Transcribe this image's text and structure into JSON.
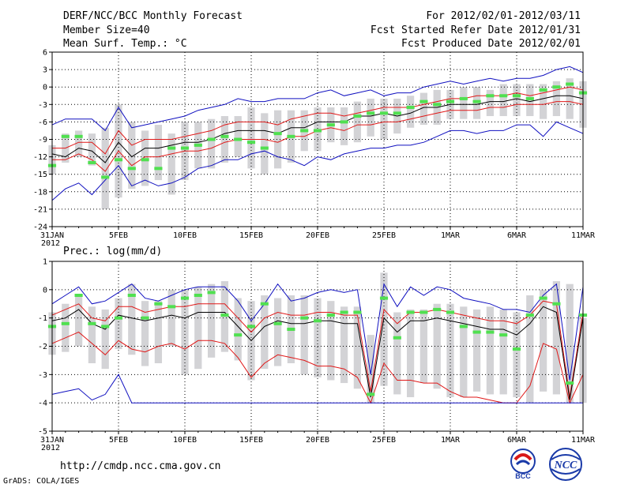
{
  "header": {
    "title": "DERF/NCC/BCC Monthly Forecast",
    "member_size": "Member Size=40",
    "variable": "Mean Surf. Temp.: °C",
    "forecast_period": "For 2012/02/01-2012/03/11",
    "refer_date": "Fcst Started Refer Date 2012/01/31",
    "produced_date": "Fcst Produced Date 2012/02/01"
  },
  "footer": {
    "url": "http://cmdp.ncc.cma.gov.cn",
    "grads": "GrADS: COLA/IGES",
    "logo_bcc": "BCC",
    "logo_ncc": "NCC"
  },
  "colors": {
    "box": "#d3d3d6",
    "obs": "#50e050",
    "mean": "#000000",
    "std": "#e01818",
    "range": "#1010c0",
    "grid": "#000000"
  },
  "chart_data": [
    {
      "type": "line",
      "title": "Mean Surf. Temp.: °C",
      "xlim": [
        0,
        40
      ],
      "ylim": [
        -24,
        6
      ],
      "yticks": [
        6,
        3,
        0,
        -3,
        -6,
        -9,
        -12,
        -15,
        -18,
        -21,
        -24
      ],
      "xtick_positions": [
        0,
        5,
        10,
        15,
        20,
        25,
        30,
        35,
        40
      ],
      "xtick_labels": [
        "31JAN",
        "5FEB",
        "10FEB",
        "15FEB",
        "20FEB",
        "25FEB",
        "1MAR",
        "6MAR",
        "11MAR"
      ],
      "xtick_year": "2012",
      "box_low": [
        -15,
        -13,
        -12,
        -13.5,
        -21,
        -19,
        -17.5,
        -17,
        -16,
        -18.5,
        -16,
        -14,
        -14,
        -13,
        -12,
        -14,
        -15,
        -14,
        -13,
        -11,
        -11,
        -9.5,
        -10,
        -9.5,
        -8.5,
        -9,
        -8,
        -7,
        -6.5,
        -6.5,
        -5.5,
        -5.5,
        -5.5,
        -5,
        -5,
        -5,
        -5,
        -5.5,
        -5,
        -5.5,
        -7
      ],
      "box_high": [
        -10,
        -8,
        -7.5,
        -8,
        -7,
        -3,
        -6,
        -7.5,
        -6.5,
        -8,
        -6,
        -6,
        -5.5,
        -5,
        -5,
        -3.5,
        -4.5,
        -4,
        -4,
        -4,
        -3.5,
        -3.5,
        -3.5,
        -2.5,
        -2,
        -2,
        -2,
        -1.5,
        -1,
        -0.5,
        -0.5,
        0,
        0,
        -0.5,
        0.5,
        0.5,
        0.5,
        0.5,
        1,
        1.5,
        1
      ],
      "observed": [
        -13.5,
        -8.5,
        -8.5,
        -13,
        -15.5,
        -12.5,
        -14,
        -12.5,
        -14,
        -10.5,
        -10.5,
        -10,
        -9,
        -8.5,
        -9,
        -9.5,
        -10.5,
        -8,
        -8.5,
        -7.5,
        -7.5,
        -6.5,
        -6,
        -5,
        -4.5,
        -4.5,
        -4.5,
        -3.5,
        -2.5,
        -3,
        -2.5,
        -2,
        -2.5,
        -1.5,
        -1.5,
        -1.5,
        -2,
        -0.5,
        0,
        0.5,
        -1
      ],
      "series": [
        {
          "name": "max",
          "color": "#1010c0",
          "values": [
            -6.5,
            -5.5,
            -5.5,
            -5.5,
            -7.5,
            -3.5,
            -7,
            -6.5,
            -6,
            -5.5,
            -5,
            -4,
            -3.5,
            -3,
            -2,
            -2.5,
            -2.5,
            -2,
            -2,
            -2,
            -1,
            -0.5,
            -1.5,
            -1,
            -0.5,
            -1.5,
            -1,
            -1,
            0,
            0.5,
            1,
            0.5,
            1,
            1.5,
            1,
            1.5,
            1.5,
            2,
            3,
            3.5,
            2.5
          ]
        },
        {
          "name": "mean+sd",
          "color": "#e01818",
          "values": [
            -10.5,
            -10.5,
            -9.5,
            -9.5,
            -11.5,
            -7.5,
            -10,
            -9,
            -9,
            -9,
            -8.5,
            -8,
            -7.5,
            -6.5,
            -6,
            -6,
            -6,
            -6.5,
            -5.5,
            -5,
            -4.5,
            -4.5,
            -5,
            -4.5,
            -4,
            -3.5,
            -3.5,
            -3.5,
            -3,
            -2.5,
            -2,
            -2,
            -1.5,
            -1.5,
            -1.5,
            -1,
            -1.5,
            -1,
            -0.5,
            0,
            -0.5
          ]
        },
        {
          "name": "mean",
          "color": "#000000",
          "values": [
            -11.5,
            -12,
            -10.5,
            -11,
            -13,
            -9.5,
            -12,
            -10.5,
            -10.5,
            -10,
            -9.5,
            -9.5,
            -9,
            -8,
            -7.5,
            -7.5,
            -7.5,
            -8,
            -7,
            -7,
            -6,
            -6,
            -6,
            -5,
            -5,
            -4.5,
            -5,
            -4.5,
            -3.5,
            -3.5,
            -3,
            -3,
            -3,
            -2.5,
            -2.5,
            -2,
            -2.5,
            -2,
            -1.5,
            -1.5,
            -2
          ]
        },
        {
          "name": "mean-sd",
          "color": "#e01818",
          "values": [
            -12.5,
            -12.5,
            -11.5,
            -12.5,
            -14.5,
            -11,
            -13.5,
            -12,
            -12,
            -11.5,
            -11,
            -11,
            -10.5,
            -9.5,
            -9,
            -9,
            -9,
            -9.5,
            -8.5,
            -8.5,
            -7.5,
            -7,
            -7.5,
            -6.5,
            -6.5,
            -6,
            -6,
            -5.5,
            -5,
            -4.5,
            -4,
            -4,
            -4,
            -3.5,
            -3.5,
            -3,
            -3,
            -3,
            -2.5,
            -2.5,
            -3
          ]
        },
        {
          "name": "min",
          "color": "#1010c0",
          "values": [
            -19.5,
            -17.5,
            -16.5,
            -18.5,
            -16,
            -13.5,
            -17,
            -16,
            -17,
            -16.5,
            -15.5,
            -14,
            -13.5,
            -12.5,
            -12.5,
            -11.5,
            -11,
            -12,
            -12.5,
            -13.5,
            -12,
            -12.5,
            -11.5,
            -11,
            -10.5,
            -10.5,
            -10,
            -10,
            -9.5,
            -8.5,
            -7.5,
            -7.5,
            -8,
            -7.5,
            -7.5,
            -6.5,
            -6.5,
            -8.5,
            -6,
            -7,
            -8
          ]
        }
      ]
    },
    {
      "type": "line",
      "title": "Prec.: log(mm/d)",
      "xlim": [
        0,
        40
      ],
      "ylim": [
        -5,
        1
      ],
      "yticks": [
        1,
        0,
        -1,
        -2,
        -3,
        -4,
        -5
      ],
      "xtick_positions": [
        0,
        5,
        10,
        15,
        20,
        25,
        30,
        35,
        40
      ],
      "xtick_labels": [
        "31JAN",
        "5FEB",
        "10FEB",
        "15FEB",
        "20FEB",
        "25FEB",
        "1MAR",
        "6MAR",
        "11MAR"
      ],
      "xtick_year": "2012",
      "box_low": [
        -2.3,
        -2.2,
        -2,
        -2.6,
        -2.8,
        -2.1,
        -2.3,
        -2.7,
        -2.6,
        -2,
        -3,
        -2.8,
        -2.4,
        -2.2,
        -2.5,
        -3.2,
        -2.8,
        -2.7,
        -2.6,
        -3,
        -3.1,
        -3.2,
        -3.3,
        -3.5,
        -4,
        -3.4,
        -3.7,
        -3.8,
        -3.3,
        -3.5,
        -3.8,
        -3.8,
        -3.6,
        -3.7,
        -3.7,
        -3.8,
        -4,
        -3.6,
        -3.7,
        -4,
        -4
      ],
      "box_high": [
        -0.8,
        -0.5,
        -0.2,
        -0.6,
        -0.7,
        -0.3,
        0.2,
        -0.4,
        -0.4,
        0,
        0,
        0.1,
        0.2,
        0.3,
        -0.3,
        -0.4,
        -0.2,
        -0.3,
        -0.2,
        -0.2,
        -0.3,
        -0.4,
        -0.6,
        -0.6,
        -1.6,
        0.6,
        -0.8,
        -0.7,
        -0.7,
        -0.5,
        -0.5,
        -0.6,
        -0.7,
        -0.6,
        -0.7,
        -0.8,
        -0.2,
        0,
        0.3,
        0.2,
        -1
      ],
      "observed": [
        -1.3,
        -1.2,
        -0.2,
        -1.2,
        -1.3,
        -1,
        -0.2,
        -1,
        -0.5,
        -0.6,
        -0.3,
        -0.2,
        -0.1,
        -0.9,
        -1.6,
        -1.3,
        -0.5,
        -1.2,
        -1.4,
        -1,
        -1.1,
        -0.9,
        -0.8,
        -0.8,
        -3.7,
        -0.3,
        -1.7,
        -0.8,
        -0.8,
        -0.7,
        -0.8,
        -1.3,
        -1.5,
        -1.5,
        -1.6,
        -2.1,
        -0.9,
        -0.3,
        -0.5,
        -3.3,
        -0.9
      ],
      "series": [
        {
          "name": "max",
          "color": "#1010c0",
          "values": [
            -0.5,
            -0.2,
            0.1,
            -0.5,
            -0.4,
            -0.1,
            0.2,
            -0.3,
            -0.4,
            -0.2,
            0,
            0.1,
            0.1,
            0.1,
            -0.4,
            -1.1,
            -0.5,
            0.2,
            -0.4,
            -0.3,
            -0.1,
            0,
            -0.1,
            0,
            -3,
            0.2,
            -0.6,
            0.1,
            -0.2,
            0.1,
            0,
            -0.3,
            -0.4,
            -0.5,
            -0.7,
            -0.7,
            -0.8,
            -0.2,
            0.2,
            -3.2,
            0.1
          ]
        },
        {
          "name": "mean+sd",
          "color": "#e01818",
          "values": [
            -0.9,
            -0.7,
            -0.5,
            -1,
            -1.1,
            -0.6,
            -0.6,
            -0.8,
            -0.7,
            -0.6,
            -0.6,
            -0.5,
            -0.5,
            -0.5,
            -1,
            -1.5,
            -1,
            -0.8,
            -0.9,
            -0.9,
            -0.8,
            -0.8,
            -0.9,
            -0.9,
            -3.6,
            -0.7,
            -1.2,
            -0.8,
            -0.8,
            -0.7,
            -0.8,
            -0.9,
            -1,
            -1.1,
            -1.1,
            -1.2,
            -0.9,
            -0.4,
            -0.5,
            -3.8,
            -0.8
          ]
        },
        {
          "name": "mean",
          "color": "#000000",
          "values": [
            -1.1,
            -1,
            -0.7,
            -1.2,
            -1.4,
            -0.9,
            -1,
            -1.1,
            -1,
            -0.9,
            -1,
            -0.8,
            -0.8,
            -0.8,
            -1.3,
            -1.8,
            -1.3,
            -1.1,
            -1.2,
            -1.2,
            -1.1,
            -1.1,
            -1.2,
            -1.2,
            -3.8,
            -1,
            -1.5,
            -1.1,
            -1.1,
            -1,
            -1.1,
            -1.2,
            -1.3,
            -1.4,
            -1.4,
            -1.6,
            -1.2,
            -0.6,
            -0.8,
            -3.9,
            -1
          ]
        },
        {
          "name": "mean-sd",
          "color": "#e01818",
          "values": [
            -1.9,
            -1.7,
            -1.5,
            -1.9,
            -2.3,
            -1.8,
            -2.1,
            -2.2,
            -2,
            -1.9,
            -2.1,
            -1.8,
            -1.8,
            -1.9,
            -2.4,
            -3.1,
            -2.6,
            -2.3,
            -2.4,
            -2.5,
            -2.7,
            -2.7,
            -2.8,
            -3.1,
            -4,
            -2.6,
            -3.2,
            -3.2,
            -3.3,
            -3.3,
            -3.6,
            -3.8,
            -3.8,
            -3.9,
            -4,
            -4,
            -3.4,
            -1.9,
            -2.1,
            -4,
            -3
          ]
        },
        {
          "name": "min",
          "color": "#1010c0",
          "values": [
            -3.7,
            -3.6,
            -3.5,
            -3.9,
            -3.7,
            -3,
            -4,
            -4,
            -4,
            -4,
            -4,
            -4,
            -4,
            -4,
            -4,
            -4,
            -4,
            -4,
            -4,
            -4,
            -4,
            -4,
            -4,
            -4,
            -4,
            -4,
            -4,
            -4,
            -4,
            -4,
            -4,
            -4,
            -4,
            -4,
            -4,
            -4,
            -4,
            -4,
            -4,
            -4,
            -4
          ]
        }
      ]
    }
  ]
}
